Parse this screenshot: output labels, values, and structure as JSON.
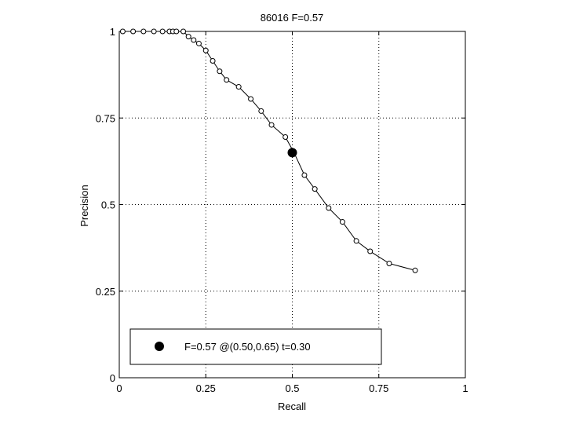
{
  "chart_data": {
    "type": "line",
    "title": "86016 F=0.57",
    "xlabel": "Recall",
    "ylabel": "Precision",
    "xlim": [
      0,
      1
    ],
    "ylim": [
      0,
      1
    ],
    "grid": true,
    "x_ticks": [
      0,
      0.25,
      0.5,
      0.75,
      1
    ],
    "x_tick_labels": [
      "0",
      "0.25",
      "0.5",
      "0.75",
      "1"
    ],
    "y_ticks": [
      0,
      0.25,
      0.5,
      0.75,
      1
    ],
    "y_tick_labels": [
      "0",
      "0.25",
      "0.5",
      "0.75",
      "1"
    ],
    "series": [
      {
        "x": [
          0.01,
          0.04,
          0.07,
          0.1,
          0.125,
          0.145,
          0.155,
          0.165,
          0.185,
          0.2,
          0.215,
          0.23,
          0.25,
          0.27,
          0.29,
          0.31,
          0.345,
          0.38,
          0.41,
          0.44,
          0.48,
          0.505,
          0.535,
          0.565,
          0.605,
          0.645,
          0.685,
          0.725,
          0.78,
          0.855
        ],
        "y": [
          1.0,
          1.0,
          1.0,
          1.0,
          1.0,
          1.0,
          1.0,
          1.0,
          1.0,
          0.985,
          0.975,
          0.965,
          0.945,
          0.915,
          0.885,
          0.86,
          0.84,
          0.805,
          0.77,
          0.73,
          0.695,
          0.65,
          0.585,
          0.545,
          0.49,
          0.45,
          0.395,
          0.365,
          0.33,
          0.31
        ]
      }
    ],
    "highlight_point": {
      "x": 0.5,
      "y": 0.65
    },
    "legend": {
      "position": "bottom",
      "text": "F=0.57 @(0.50,0.65) t=0.30"
    }
  }
}
